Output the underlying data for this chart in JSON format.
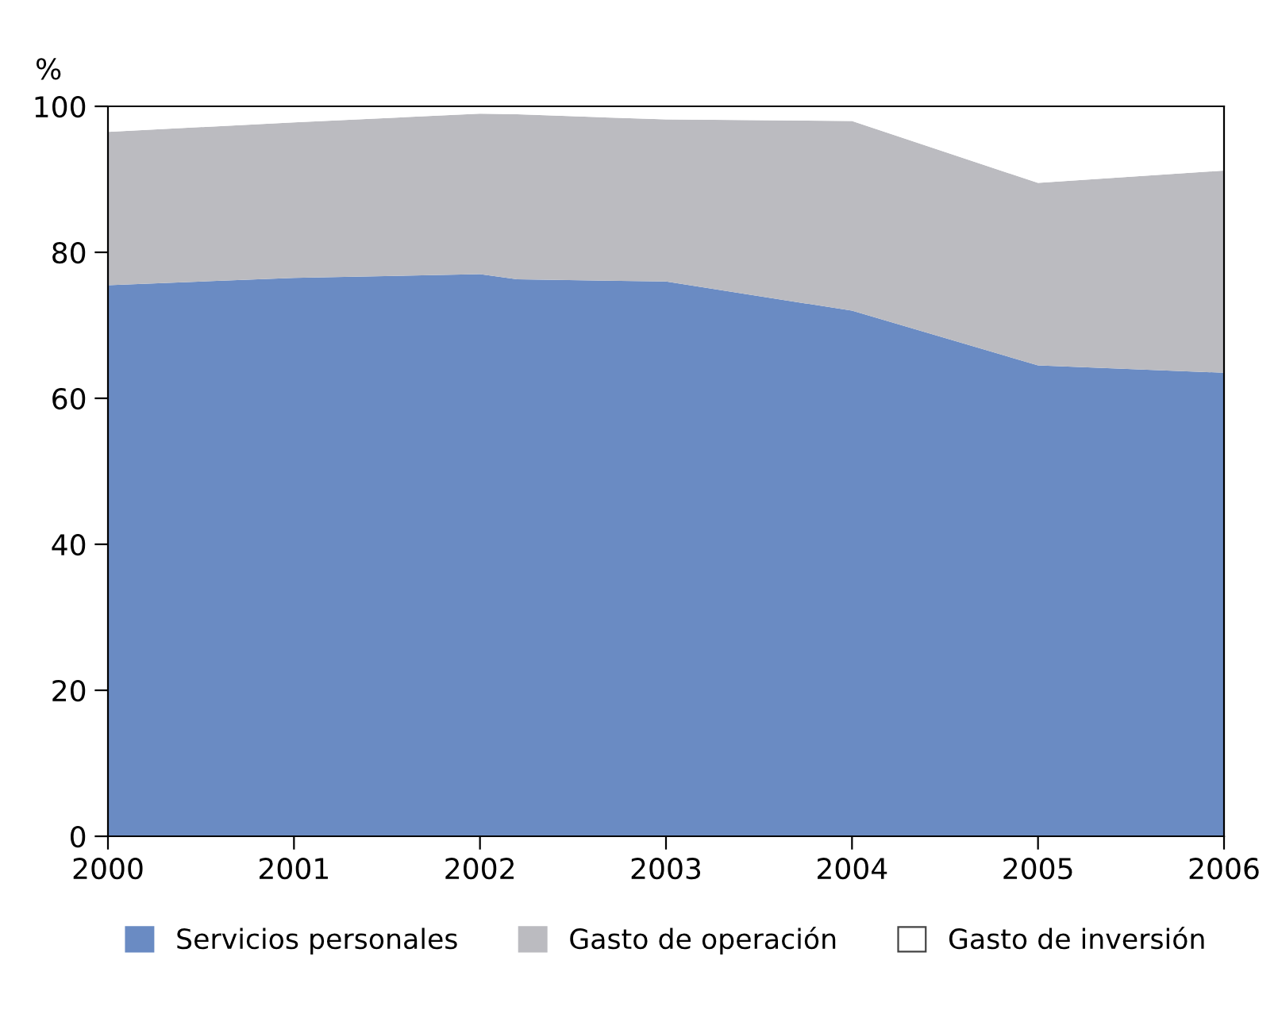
{
  "chart_data": {
    "type": "area",
    "stacked": true,
    "ylabel": "%",
    "x": [
      2000,
      2001,
      2002,
      2002.2,
      2003,
      2004,
      2005,
      2006
    ],
    "series": [
      {
        "name": "Servicios personales",
        "color": "#6a8bc3",
        "values": [
          75.5,
          76.5,
          77,
          76.3,
          76,
          72,
          64.5,
          63.5
        ]
      },
      {
        "name": "Gasto de operación",
        "color": "#bbbbc0",
        "values": [
          21,
          21.3,
          22,
          22.6,
          22.2,
          26,
          25,
          27.7
        ]
      },
      {
        "name": "Gasto de inversión",
        "color": "#ffffff",
        "values": [
          3.5,
          2.2,
          1,
          1.1,
          1.8,
          2,
          10.5,
          8.8
        ]
      }
    ],
    "xlim": [
      2000,
      2006
    ],
    "xticks": [
      2000,
      2001,
      2002,
      2003,
      2004,
      2005,
      2006
    ],
    "ylim": [
      0,
      100
    ],
    "yticks": [
      0,
      20,
      40,
      60,
      80,
      100
    ],
    "grid": false,
    "legend": "bottom"
  }
}
